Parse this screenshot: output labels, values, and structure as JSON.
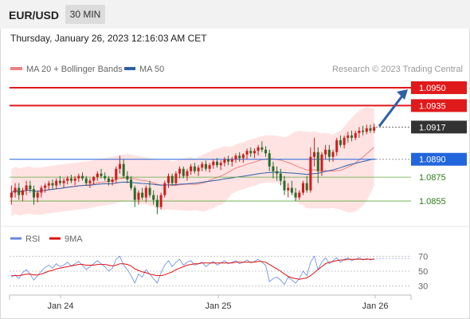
{
  "header": {
    "symbol": "EUR/USD",
    "timeframe": "30 MIN"
  },
  "datetime": "Thursday, January 26, 2023 12:16:03 AM CET",
  "legend": {
    "ma20": "MA 20 + Bollinger Bands",
    "ma50": "MA 50",
    "credit": "Research © 2023 Trading Central"
  },
  "colors": {
    "up": "#d11c1c",
    "down": "#2a6e2a",
    "ma20": "#f08080",
    "ma50": "#2d5fa6",
    "band": "#ffd9d9",
    "resistance": "#e0191b",
    "pivot": "#2266dd",
    "support": "#5aaa3c",
    "rsi": "#6688dd",
    "rsi_ma": "#dd1111",
    "arrow": "#2d5fa6"
  },
  "chart_data": [
    {
      "type": "candlestick",
      "name": "EUR/USD price",
      "x_labels": [
        "Jan 24",
        "Jan 25",
        "Jan 26"
      ],
      "ylim": [
        1.0835,
        1.096
      ],
      "current_price": 1.0917,
      "levels": [
        {
          "label": "1.0950",
          "value": 1.095,
          "kind": "resistance"
        },
        {
          "label": "1.0935",
          "value": 1.0935,
          "kind": "resistance"
        },
        {
          "label": "1.0917",
          "value": 1.0917,
          "kind": "current"
        },
        {
          "label": "1.0890",
          "value": 1.089,
          "kind": "pivot"
        },
        {
          "label": "1.0875",
          "value": 1.0875,
          "kind": "support"
        },
        {
          "label": "1.0855",
          "value": 1.0855,
          "kind": "support"
        }
      ],
      "projection": {
        "from": 1.0917,
        "to": 1.095,
        "direction": "up"
      },
      "ohlc": [
        [
          1.0858,
          1.0868,
          1.0852,
          1.0862
        ],
        [
          1.0862,
          1.087,
          1.0858,
          1.0866
        ],
        [
          1.0866,
          1.087,
          1.0856,
          1.086
        ],
        [
          1.086,
          1.0866,
          1.0855,
          1.0864
        ],
        [
          1.0864,
          1.0872,
          1.086,
          1.0868
        ],
        [
          1.0868,
          1.0872,
          1.0862,
          1.0865
        ],
        [
          1.0865,
          1.0868,
          1.0852,
          1.0858
        ],
        [
          1.0858,
          1.0864,
          1.0854,
          1.0862
        ],
        [
          1.0862,
          1.0868,
          1.0858,
          1.0866
        ],
        [
          1.0866,
          1.087,
          1.0862,
          1.0868
        ],
        [
          1.0868,
          1.0872,
          1.0864,
          1.087
        ],
        [
          1.087,
          1.0873,
          1.0865,
          1.0868
        ],
        [
          1.0868,
          1.0874,
          1.0865,
          1.0872
        ],
        [
          1.0872,
          1.0876,
          1.0868,
          1.087
        ],
        [
          1.087,
          1.0874,
          1.0866,
          1.0872
        ],
        [
          1.0872,
          1.0876,
          1.0869,
          1.0874
        ],
        [
          1.0874,
          1.0877,
          1.087,
          1.0872
        ],
        [
          1.0872,
          1.0876,
          1.0868,
          1.0874
        ],
        [
          1.0874,
          1.0878,
          1.0871,
          1.0876
        ],
        [
          1.0876,
          1.0879,
          1.0872,
          1.0874
        ],
        [
          1.0874,
          1.0876,
          1.0868,
          1.087
        ],
        [
          1.087,
          1.0874,
          1.0866,
          1.0872
        ],
        [
          1.0872,
          1.0876,
          1.0869,
          1.0875
        ],
        [
          1.0875,
          1.088,
          1.0872,
          1.0878
        ],
        [
          1.0878,
          1.0882,
          1.0874,
          1.0876
        ],
        [
          1.0876,
          1.0879,
          1.0872,
          1.0874
        ],
        [
          1.0874,
          1.0876,
          1.0868,
          1.0871
        ],
        [
          1.0871,
          1.0875,
          1.0868,
          1.0873
        ],
        [
          1.0873,
          1.0884,
          1.087,
          1.0882
        ],
        [
          1.0882,
          1.0893,
          1.0878,
          1.0886
        ],
        [
          1.0886,
          1.089,
          1.0874,
          1.0876
        ],
        [
          1.0876,
          1.088,
          1.087,
          1.0873
        ],
        [
          1.0873,
          1.0876,
          1.0864,
          1.0866
        ],
        [
          1.0866,
          1.0868,
          1.085,
          1.0856
        ],
        [
          1.0856,
          1.0864,
          1.0852,
          1.0862
        ],
        [
          1.0862,
          1.0866,
          1.0856,
          1.0858
        ],
        [
          1.0858,
          1.0868,
          1.0854,
          1.0866
        ],
        [
          1.0866,
          1.0872,
          1.0858,
          1.086
        ],
        [
          1.086,
          1.0864,
          1.0852,
          1.0856
        ],
        [
          1.0856,
          1.086,
          1.0844,
          1.085
        ],
        [
          1.085,
          1.0862,
          1.0848,
          1.086
        ],
        [
          1.086,
          1.0872,
          1.0858,
          1.087
        ],
        [
          1.087,
          1.0878,
          1.0866,
          1.0876
        ],
        [
          1.0876,
          1.0878,
          1.0868,
          1.087
        ],
        [
          1.087,
          1.088,
          1.0868,
          1.0878
        ],
        [
          1.0878,
          1.0884,
          1.0874,
          1.0882
        ],
        [
          1.0882,
          1.0884,
          1.0874,
          1.0876
        ],
        [
          1.0876,
          1.0882,
          1.0872,
          1.088
        ],
        [
          1.088,
          1.0886,
          1.0877,
          1.0884
        ],
        [
          1.0884,
          1.0887,
          1.0878,
          1.088
        ],
        [
          1.088,
          1.0885,
          1.0876,
          1.0883
        ],
        [
          1.0883,
          1.0888,
          1.088,
          1.0886
        ],
        [
          1.0886,
          1.0889,
          1.088,
          1.0882
        ],
        [
          1.0882,
          1.0887,
          1.0879,
          1.0885
        ],
        [
          1.0885,
          1.089,
          1.0882,
          1.0888
        ],
        [
          1.0888,
          1.0891,
          1.0883,
          1.0885
        ],
        [
          1.0885,
          1.0889,
          1.0881,
          1.0887
        ],
        [
          1.0887,
          1.0892,
          1.0884,
          1.089
        ],
        [
          1.089,
          1.0893,
          1.0885,
          1.0888
        ],
        [
          1.0888,
          1.0892,
          1.0884,
          1.089
        ],
        [
          1.089,
          1.0895,
          1.0887,
          1.0893
        ],
        [
          1.0893,
          1.0896,
          1.0888,
          1.0891
        ],
        [
          1.0891,
          1.0895,
          1.0887,
          1.0894
        ],
        [
          1.0894,
          1.0899,
          1.089,
          1.0897
        ],
        [
          1.0897,
          1.09,
          1.0892,
          1.0895
        ],
        [
          1.0895,
          1.0899,
          1.0891,
          1.0897
        ],
        [
          1.0897,
          1.0902,
          1.0893,
          1.09
        ],
        [
          1.09,
          1.0905,
          1.0896,
          1.0898
        ],
        [
          1.0898,
          1.0901,
          1.0892,
          1.0895
        ],
        [
          1.0895,
          1.0898,
          1.088,
          1.0884
        ],
        [
          1.0884,
          1.0888,
          1.0874,
          1.088
        ],
        [
          1.088,
          1.0884,
          1.0872,
          1.0878
        ],
        [
          1.0878,
          1.0882,
          1.0868,
          1.0872
        ],
        [
          1.0872,
          1.0876,
          1.086,
          1.0864
        ],
        [
          1.0864,
          1.087,
          1.0858,
          1.0866
        ],
        [
          1.0866,
          1.0872,
          1.086,
          1.0862
        ],
        [
          1.0862,
          1.0866,
          1.0855,
          1.0858
        ],
        [
          1.0858,
          1.0864,
          1.0856,
          1.0862
        ],
        [
          1.0862,
          1.0872,
          1.086,
          1.087
        ],
        [
          1.087,
          1.0876,
          1.0862,
          1.0864
        ],
        [
          1.0864,
          1.09,
          1.0862,
          1.0892
        ],
        [
          1.0892,
          1.0908,
          1.0884,
          1.0896
        ],
        [
          1.0896,
          1.09,
          1.087,
          1.088
        ],
        [
          1.088,
          1.0896,
          1.0876,
          1.0894
        ],
        [
          1.0894,
          1.0902,
          1.089,
          1.0898
        ],
        [
          1.0898,
          1.0902,
          1.0888,
          1.0892
        ],
        [
          1.0892,
          1.0898,
          1.0888,
          1.0896
        ],
        [
          1.0896,
          1.0908,
          1.0893,
          1.0906
        ],
        [
          1.0906,
          1.091,
          1.09,
          1.0902
        ],
        [
          1.0902,
          1.091,
          1.0899,
          1.0908
        ],
        [
          1.0908,
          1.0913,
          1.0904,
          1.091
        ],
        [
          1.091,
          1.0914,
          1.0905,
          1.0908
        ],
        [
          1.0908,
          1.0914,
          1.0906,
          1.0912
        ],
        [
          1.0912,
          1.0917,
          1.0908,
          1.0914
        ],
        [
          1.0914,
          1.0918,
          1.091,
          1.0913
        ],
        [
          1.0913,
          1.0919,
          1.0911,
          1.0916
        ],
        [
          1.0916,
          1.0919,
          1.0912,
          1.0914
        ],
        [
          1.0914,
          1.092,
          1.0912,
          1.0917
        ]
      ]
    },
    {
      "type": "line",
      "name": "RSI",
      "series": [
        {
          "name": "RSI",
          "values": [
            42,
            45,
            40,
            48,
            52,
            46,
            38,
            44,
            50,
            55,
            58,
            54,
            60,
            56,
            58,
            62,
            57,
            60,
            63,
            58,
            52,
            56,
            60,
            64,
            60,
            56,
            50,
            54,
            66,
            70,
            58,
            52,
            44,
            34,
            46,
            42,
            52,
            46,
            40,
            34,
            48,
            58,
            64,
            56,
            62,
            66,
            58,
            62,
            64,
            58,
            60,
            62,
            56,
            60,
            63,
            58,
            61,
            64,
            60,
            62,
            64,
            60,
            62,
            65,
            61,
            63,
            66,
            62,
            58,
            36,
            40,
            42,
            38,
            32,
            42,
            38,
            34,
            40,
            50,
            44,
            62,
            70,
            52,
            62,
            68,
            60,
            64,
            68,
            62,
            66,
            68,
            64,
            66,
            68,
            65,
            67,
            65,
            67
          ]
        },
        {
          "name": "9MA",
          "values": [
            44,
            44,
            44,
            45,
            46,
            46,
            45,
            45,
            46,
            48,
            50,
            51,
            53,
            54,
            55,
            56,
            57,
            58,
            59,
            59,
            58,
            58,
            58,
            59,
            59,
            59,
            58,
            57,
            58,
            60,
            60,
            59,
            57,
            53,
            51,
            49,
            48,
            46,
            45,
            44,
            44,
            45,
            47,
            49,
            52,
            54,
            56,
            58,
            59,
            60,
            60,
            61,
            61,
            61,
            61,
            61,
            61,
            61,
            61,
            61,
            62,
            62,
            62,
            62,
            62,
            62,
            63,
            63,
            62,
            59,
            56,
            53,
            50,
            46,
            43,
            41,
            40,
            39,
            40,
            41,
            44,
            48,
            52,
            56,
            60,
            62,
            63,
            64,
            65,
            65,
            66,
            66,
            66,
            66,
            66,
            66,
            66,
            66
          ]
        }
      ],
      "ylim": [
        20,
        80
      ],
      "ticks": [
        "70",
        "50",
        "30"
      ]
    }
  ]
}
